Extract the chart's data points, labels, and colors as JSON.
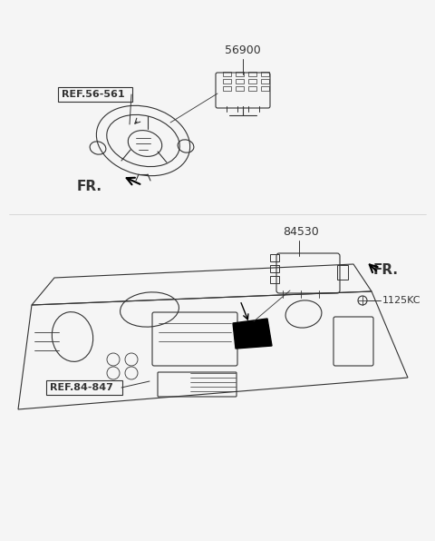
{
  "bg_color": "#f5f5f5",
  "line_color": "#333333",
  "text_color": "#333333",
  "labels": {
    "ref_56_561": "REF.56-561",
    "part_56900": "56900",
    "fr_lower": "FR.",
    "part_84530": "84530",
    "fr_upper": "FR.",
    "part_1125kc": "1125KC",
    "ref_84_847": "REF.84-847"
  },
  "title_fontsize": 9,
  "label_fontsize": 8,
  "fr_fontsize": 11
}
